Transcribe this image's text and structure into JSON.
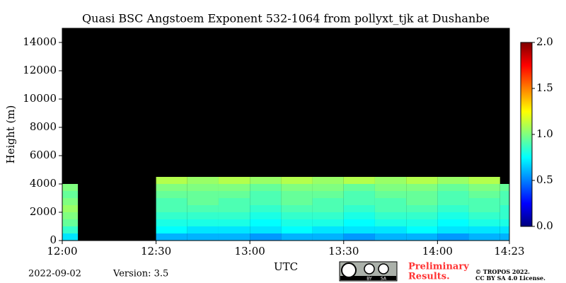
{
  "chart_data": {
    "type": "heatmap",
    "title": "Quasi BSC Angstoem Exponent 532-1064 from pollyxt_tjk at Dushanbe",
    "x_label": "UTC",
    "y_label": "Height (m)",
    "xlim": [
      0,
      143
    ],
    "xticks": [
      {
        "value": 0,
        "label": "12:00"
      },
      {
        "value": 30,
        "label": "12:30"
      },
      {
        "value": 60,
        "label": "13:00"
      },
      {
        "value": 90,
        "label": "13:30"
      },
      {
        "value": 120,
        "label": "14:00"
      },
      {
        "value": 143,
        "label": "14:23"
      }
    ],
    "ylim": [
      0,
      15000
    ],
    "yticks": [
      0,
      2000,
      4000,
      6000,
      8000,
      10000,
      12000,
      14000
    ],
    "x_edges": [
      0,
      5,
      30,
      40,
      50,
      60,
      70,
      80,
      90,
      100,
      110,
      120,
      130,
      140,
      143
    ],
    "y_edges": [
      0,
      500,
      1000,
      1500,
      2000,
      2500,
      3000,
      3500,
      4000,
      4500
    ],
    "values": [
      [
        0.7,
        null,
        0.6,
        0.6,
        0.6,
        0.55,
        0.6,
        0.6,
        0.55,
        0.6,
        0.6,
        0.55,
        0.6,
        0.6
      ],
      [
        0.85,
        null,
        0.75,
        0.7,
        0.7,
        0.7,
        0.75,
        0.7,
        0.7,
        0.7,
        0.75,
        0.7,
        0.7,
        0.7
      ],
      [
        0.95,
        null,
        0.8,
        0.8,
        0.8,
        0.75,
        0.8,
        0.8,
        0.75,
        0.8,
        0.8,
        0.75,
        0.8,
        0.8
      ],
      [
        1.0,
        null,
        0.85,
        0.85,
        0.85,
        0.8,
        0.85,
        0.85,
        0.8,
        0.85,
        0.85,
        0.8,
        0.85,
        0.85
      ],
      [
        1.05,
        null,
        0.9,
        0.9,
        0.9,
        0.85,
        0.9,
        0.9,
        0.85,
        0.9,
        0.9,
        0.85,
        0.9,
        0.85
      ],
      [
        1.0,
        null,
        0.9,
        0.95,
        0.9,
        0.9,
        0.95,
        0.9,
        0.9,
        0.9,
        0.95,
        0.9,
        0.9,
        0.9
      ],
      [
        0.95,
        null,
        0.95,
        0.95,
        0.95,
        0.9,
        0.95,
        0.95,
        0.9,
        0.95,
        0.95,
        0.9,
        0.95,
        0.9
      ],
      [
        1.0,
        null,
        1.0,
        1.0,
        1.0,
        0.95,
        1.0,
        1.0,
        0.95,
        1.0,
        1.0,
        0.95,
        1.0,
        0.95
      ],
      [
        null,
        null,
        1.1,
        1.05,
        1.1,
        1.05,
        1.1,
        1.05,
        1.1,
        1.05,
        1.1,
        1.05,
        1.1,
        null
      ]
    ],
    "colormap": "jet",
    "background": "#000000",
    "zlim": [
      0,
      2
    ],
    "zticks": [
      {
        "value": 0,
        "label": "0.0"
      },
      0.5,
      {
        "value": 1,
        "label": "1.0"
      },
      1.5,
      {
        "value": 2,
        "label": "2.0"
      }
    ]
  },
  "footer": {
    "date": "2022-09-02",
    "version": "Version: 3.5",
    "license_icon": [
      "BY",
      "SA"
    ],
    "preliminary": [
      "Preliminary",
      "Results."
    ],
    "copyright": "© TROPOS 2022.",
    "license": "CC BY SA 4.0 License."
  }
}
